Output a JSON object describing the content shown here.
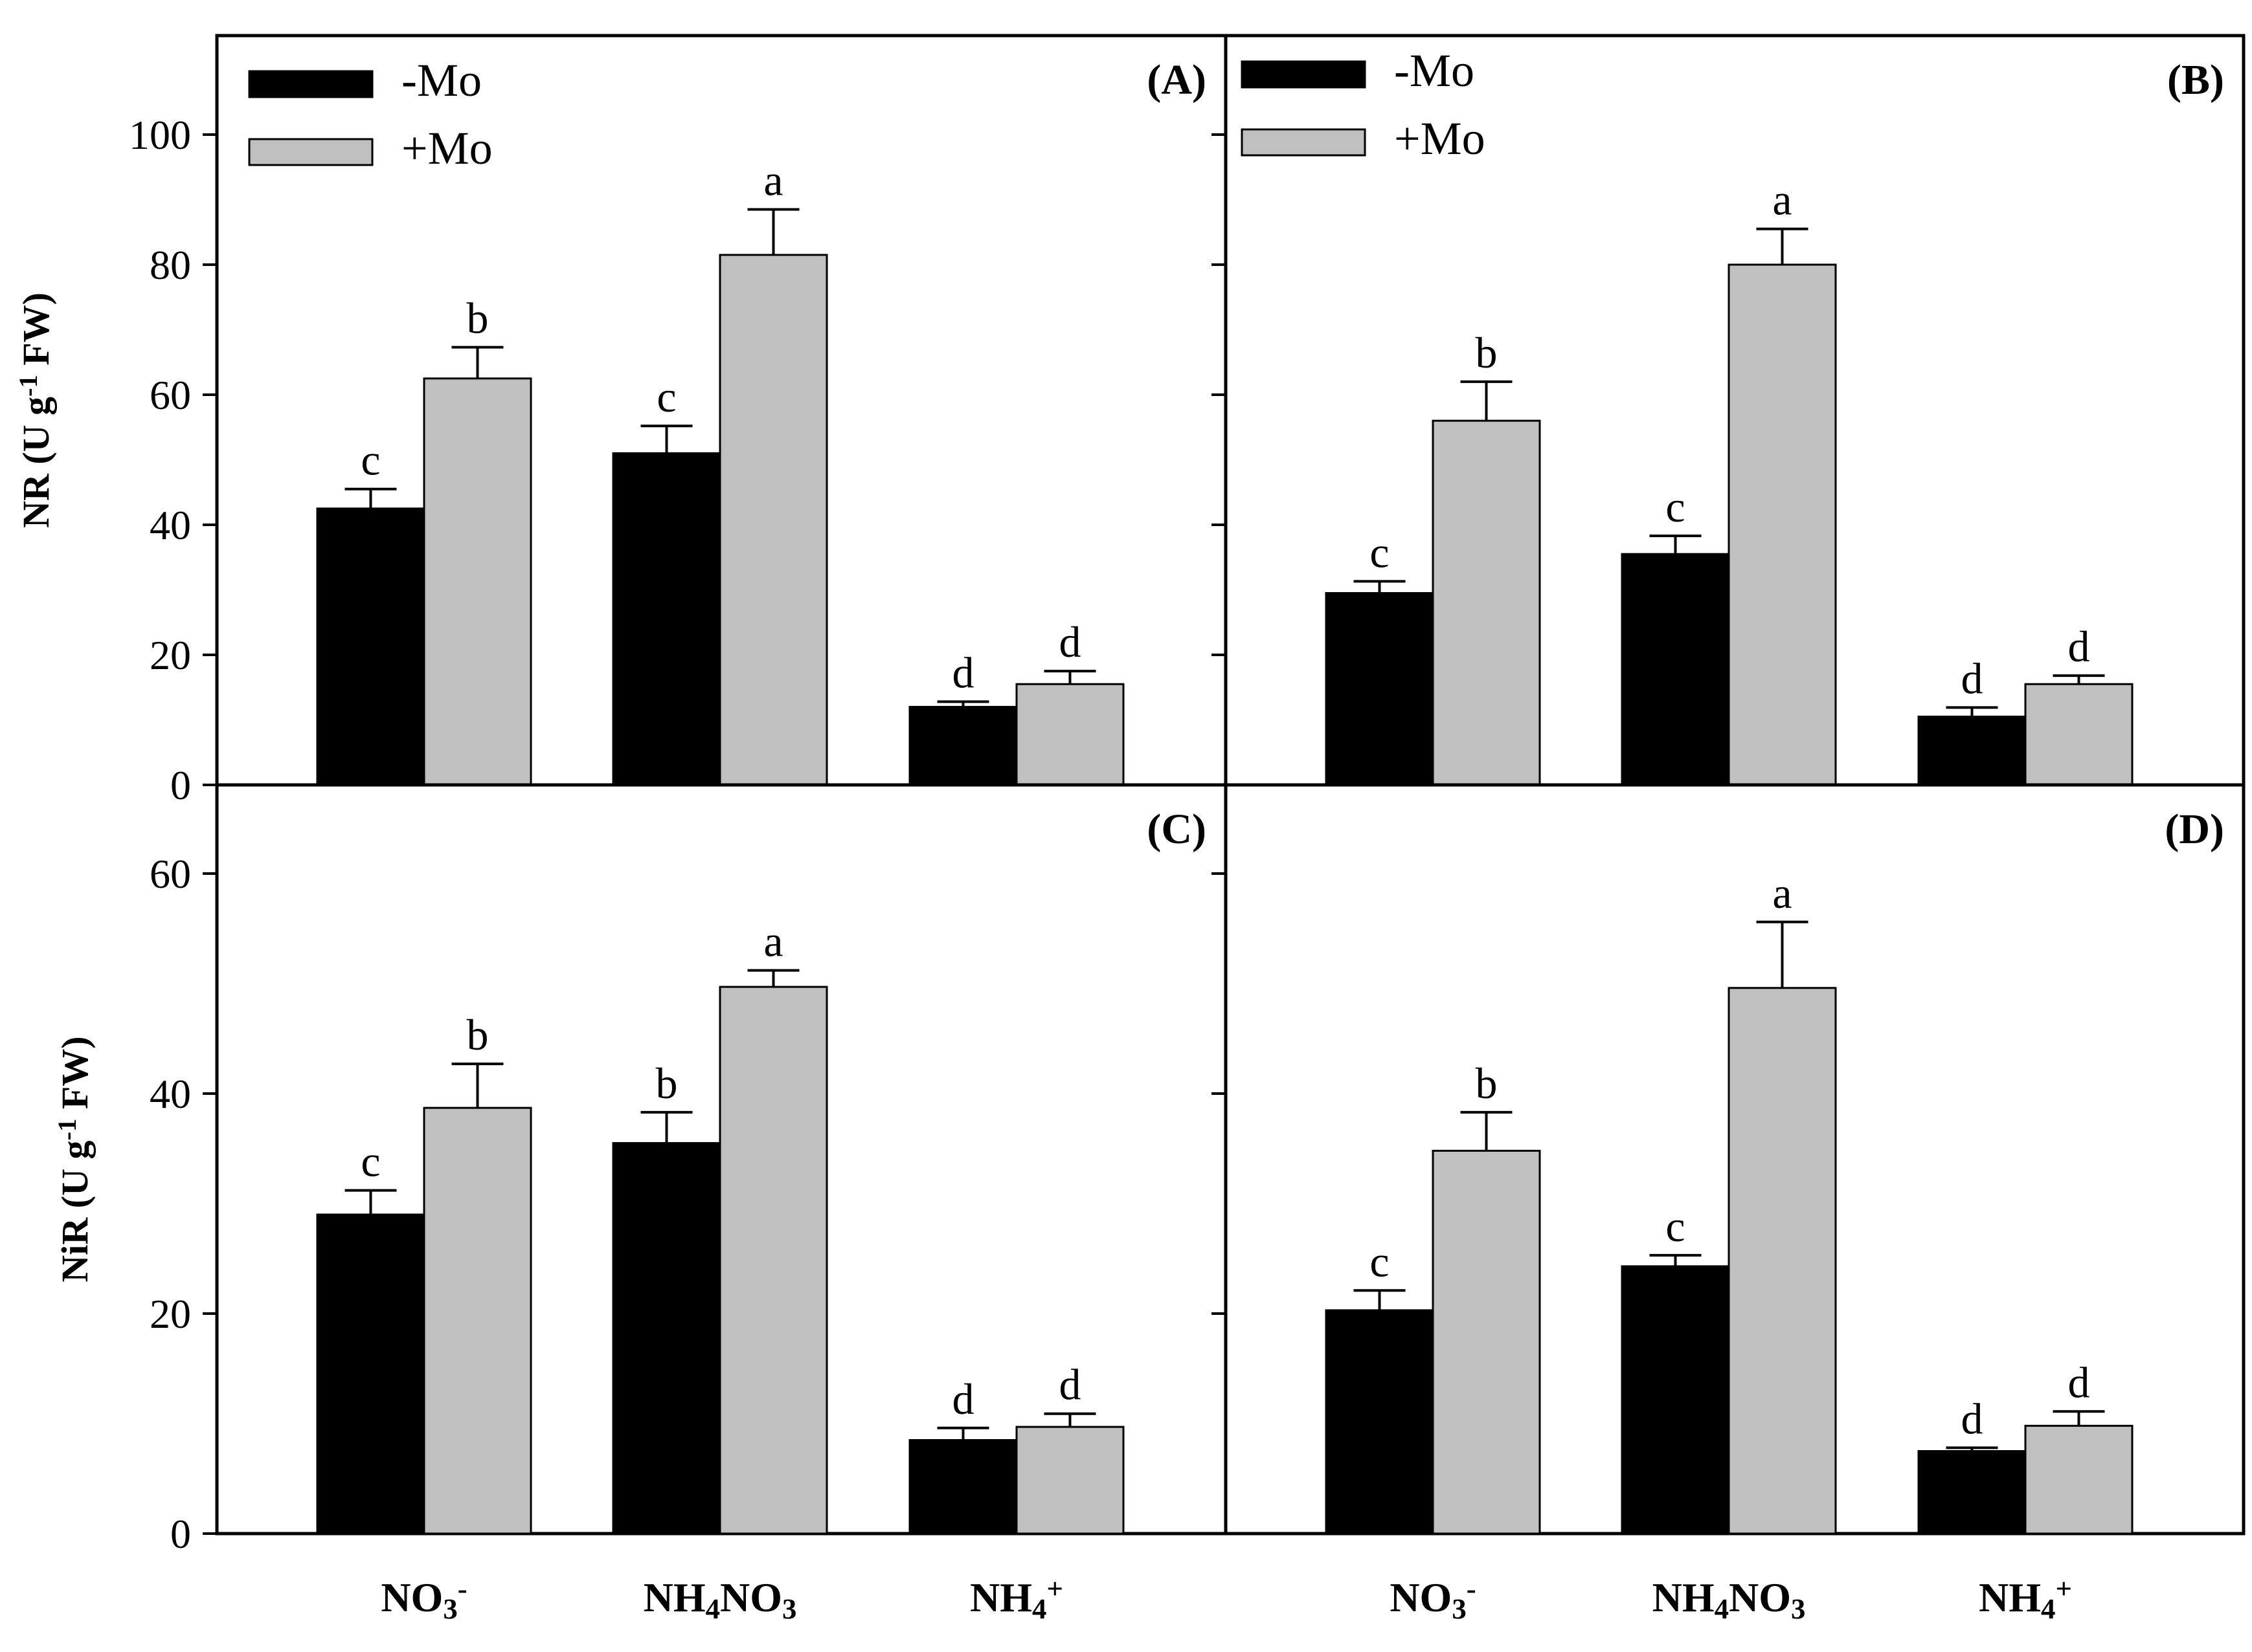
{
  "figure": {
    "colors": {
      "minus_mo": "#000000",
      "plus_mo": "#c0c0c0",
      "axis": "#000000"
    }
  },
  "chart_data": [
    {
      "panel": "(A)",
      "type": "bar",
      "ylabel": "NR (U g⁻¹ FW)",
      "ylabel_show": true,
      "ylim": [
        0,
        110
      ],
      "yticks": [
        0,
        20,
        40,
        60,
        80,
        100
      ],
      "ytick_show": true,
      "categories": [
        "NO₃⁻",
        "NH₄NO₃",
        "NH₄⁺"
      ],
      "series": [
        {
          "name": "-Mo",
          "values": [
            42.5,
            51,
            12
          ],
          "errors": [
            3,
            4.2,
            0.8
          ],
          "letters": [
            "c",
            "c",
            "d"
          ]
        },
        {
          "name": "+Mo",
          "values": [
            62.5,
            81.5,
            15.5
          ],
          "errors": [
            4.8,
            7,
            2
          ],
          "letters": [
            "b",
            "a",
            "d"
          ]
        }
      ],
      "legend": [
        "-Mo",
        "+Mo"
      ],
      "legend_position": "top-left"
    },
    {
      "panel": "(B)",
      "type": "bar",
      "ylabel": "",
      "ylabel_show": false,
      "ylim": [
        0,
        110
      ],
      "yticks": [
        0,
        20,
        40,
        60,
        80,
        100
      ],
      "ytick_show": false,
      "categories": [
        "NO₃⁻",
        "NH₄NO₃",
        "NH₄⁺"
      ],
      "series": [
        {
          "name": "-Mo",
          "values": [
            29.5,
            35.5,
            10.5
          ],
          "errors": [
            1.8,
            2.8,
            1.4
          ],
          "letters": [
            "c",
            "c",
            "d"
          ]
        },
        {
          "name": "+Mo",
          "values": [
            56,
            80,
            15.5
          ],
          "errors": [
            6,
            5.5,
            1.3
          ],
          "letters": [
            "b",
            "a",
            "d"
          ]
        }
      ],
      "legend": [
        "-Mo",
        "+Mo"
      ],
      "legend_position": "top-left"
    },
    {
      "panel": "(C)",
      "type": "bar",
      "ylabel": "NiR (U g⁻¹ FW)",
      "ylabel_show": true,
      "ylim": [
        0,
        65
      ],
      "yticks": [
        0,
        20,
        40,
        60
      ],
      "ytick_show": true,
      "categories": [
        "NO₃⁻",
        "NH₄NO₃",
        "NH₄⁺"
      ],
      "series": [
        {
          "name": "-Mo",
          "values": [
            29,
            35.5,
            8.5
          ],
          "errors": [
            2.2,
            2.8,
            1.1
          ],
          "letters": [
            "c",
            "b",
            "d"
          ]
        },
        {
          "name": "+Mo",
          "values": [
            38.7,
            49.7,
            9.7
          ],
          "errors": [
            4,
            1.5,
            1.2
          ],
          "letters": [
            "b",
            "a",
            "d"
          ]
        }
      ],
      "legend": [],
      "legend_position": ""
    },
    {
      "panel": "(D)",
      "type": "bar",
      "ylabel": "",
      "ylabel_show": false,
      "ylim": [
        0,
        65
      ],
      "yticks": [
        0,
        20,
        40,
        60
      ],
      "ytick_show": false,
      "categories": [
        "NO₃⁻",
        "NH₄NO₃",
        "NH₄⁺"
      ],
      "series": [
        {
          "name": "-Mo",
          "values": [
            20.3,
            24.3,
            7.5
          ],
          "errors": [
            1.8,
            1,
            0.3
          ],
          "letters": [
            "c",
            "c",
            "d"
          ]
        },
        {
          "name": "+Mo",
          "values": [
            34.8,
            49.6,
            9.8
          ],
          "errors": [
            3.5,
            6,
            1.3
          ],
          "letters": [
            "b",
            "a",
            "d"
          ]
        }
      ],
      "legend": [],
      "legend_position": ""
    }
  ]
}
